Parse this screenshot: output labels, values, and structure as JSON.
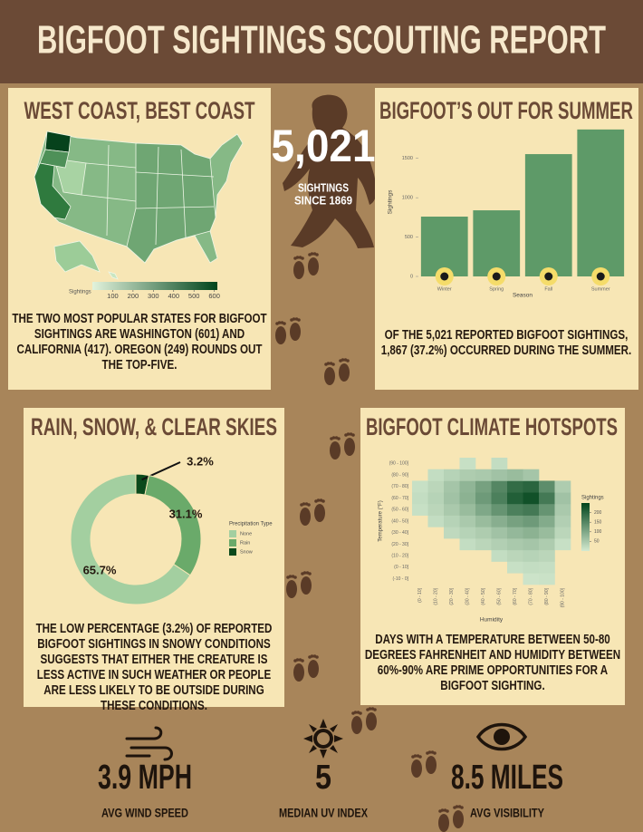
{
  "header": {
    "title": "BIGFOOT SIGHTINGS SCOUTING REPORT"
  },
  "total": {
    "value": "5,021",
    "label_lines": [
      "SIGHTINGS",
      "SINCE 1869"
    ]
  },
  "chart_data": [
    {
      "type": "map",
      "title": "WEST COAST, BEST COAST",
      "legend_title": "Sightings",
      "clim": [
        0,
        615
      ],
      "colorbar_ticks": [
        100,
        200,
        300,
        400,
        500,
        600
      ],
      "colors": [
        "#e2f3dc",
        "#00441b"
      ],
      "caption": "The two most popular states for Bigfoot sightings are Washington (601) and California (417). Oregon (249) rounds out the top-five."
    },
    {
      "type": "bar",
      "title": "BIGFOOT’S OUT FOR SUMMER",
      "categories": [
        "Winter",
        "Spring",
        "Fall",
        "Summer"
      ],
      "values": [
        760,
        840,
        1554,
        1867
      ],
      "color": "#5e9a68",
      "ylim": [
        0,
        1900
      ],
      "yticks": [
        0,
        500,
        1000,
        1500
      ],
      "xlabel": "Season",
      "ylabel": "Sightings",
      "caption": "Of the 5,021 reported Bigfoot sightings, 1,867 (37.2%) occurred during the summer."
    },
    {
      "type": "pie",
      "title": "RAIN, SNOW, & CLEAR SKIES",
      "categories": [
        "None",
        "Rain",
        "Snow"
      ],
      "values": [
        65.7,
        31.1,
        3.2
      ],
      "value_labels": [
        "65.7%",
        "31.1%",
        "3.2%"
      ],
      "colors": [
        "#a3cfa0",
        "#6aaa6a",
        "#0b4a1c"
      ],
      "legend_title": "Precipitation Type",
      "caption": "The low percentage (3.2%) of reported Bigfoot sightings in snowy conditions suggests that either the creature is less active in such weather or people are less likely to be outside during these conditions."
    },
    {
      "type": "heatmap",
      "title": "BIGFOOT CLIMATE HOTSPOTS",
      "x": [
        "(0 - 10]",
        "(10 - 20]",
        "(20 - 30]",
        "(30 - 40]",
        "(40 - 50]",
        "(50 - 60]",
        "(60 - 70]",
        "(70 - 80]",
        "(80 - 90]",
        "(90 - 100]"
      ],
      "y": [
        "(-10 - 0]",
        "(0 - 10]",
        "(10 - 20]",
        "(20 - 30]",
        "(30 - 40]",
        "(40 - 50]",
        "(50 - 60]",
        "(60 - 70]",
        "(70 - 80]",
        "(80 - 90]",
        "(90 - 100]"
      ],
      "values": [
        [
          null,
          null,
          null,
          null,
          null,
          null,
          null,
          10,
          12,
          null
        ],
        [
          null,
          null,
          null,
          null,
          null,
          null,
          15,
          20,
          18,
          null
        ],
        [
          null,
          null,
          null,
          null,
          null,
          20,
          30,
          35,
          30,
          null
        ],
        [
          null,
          null,
          null,
          20,
          30,
          40,
          50,
          55,
          45,
          15
        ],
        [
          null,
          null,
          25,
          35,
          45,
          60,
          75,
          85,
          70,
          30
        ],
        [
          null,
          20,
          35,
          50,
          70,
          90,
          110,
          120,
          95,
          40
        ],
        [
          15,
          30,
          50,
          70,
          100,
          130,
          160,
          170,
          130,
          50
        ],
        [
          20,
          35,
          60,
          85,
          120,
          160,
          210,
          230,
          170,
          60
        ],
        [
          15,
          30,
          55,
          80,
          110,
          150,
          190,
          200,
          140,
          45
        ],
        [
          null,
          20,
          35,
          45,
          50,
          60,
          70,
          55,
          null,
          null
        ],
        [
          null,
          null,
          null,
          15,
          null,
          20,
          null,
          null,
          null,
          null
        ]
      ],
      "xlabel": "Humidity",
      "ylabel": "Temperature (°F)",
      "legend_title": "Sightings",
      "clim": [
        0,
        250
      ],
      "colorbar_ticks": [
        50,
        100,
        150,
        200
      ],
      "colors": [
        "#d4ead0",
        "#00441b"
      ],
      "caption": "Days with a temperature between 50-80 degrees Fahrenheit and humidity between 60%-90% are prime opportunities for a Bigfoot sighting."
    }
  ],
  "stats": [
    {
      "value": "3.9 MPH",
      "label": "AVG WIND SPEED"
    },
    {
      "value": "5",
      "label": "MEDIAN UV INDEX"
    },
    {
      "value": "8.5 MILES",
      "label": "AVG VISIBILITY"
    }
  ]
}
